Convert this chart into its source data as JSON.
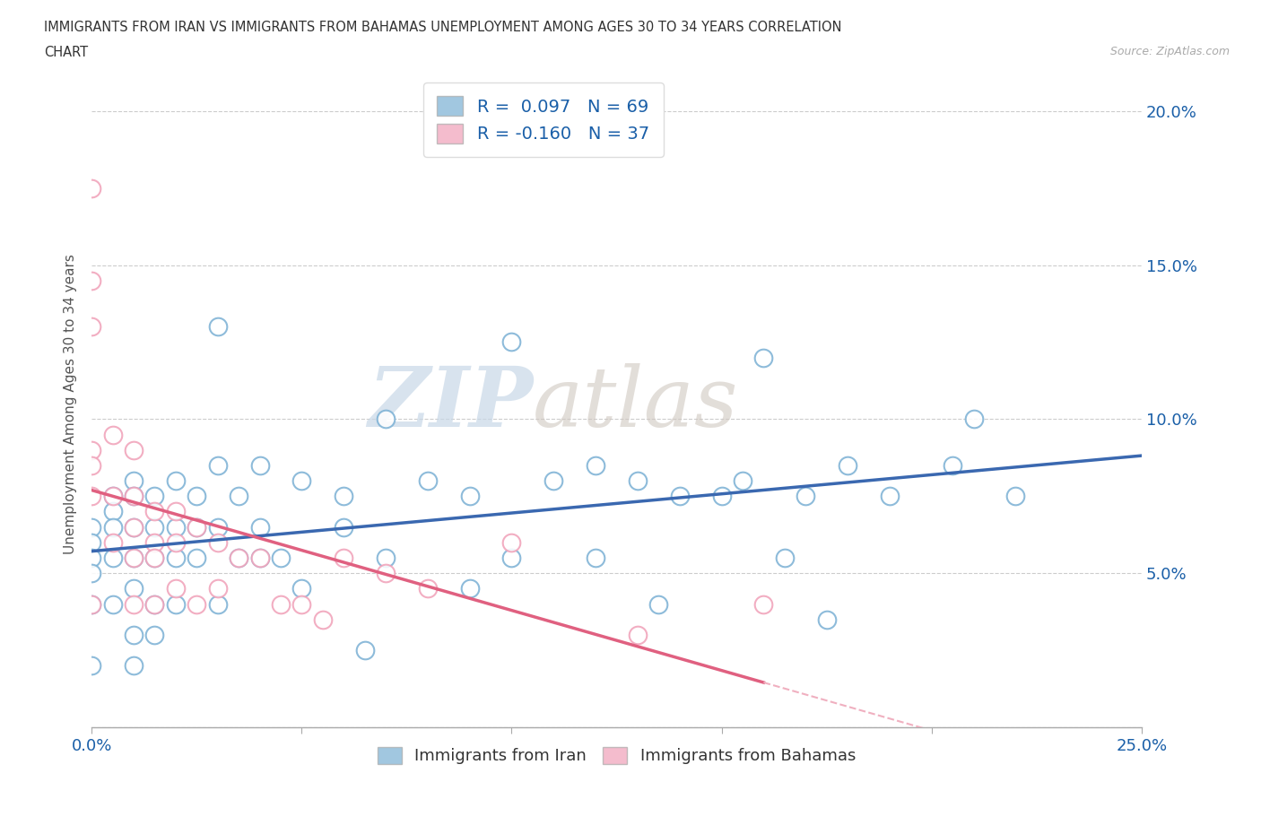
{
  "title_line1": "IMMIGRANTS FROM IRAN VS IMMIGRANTS FROM BAHAMAS UNEMPLOYMENT AMONG AGES 30 TO 34 YEARS CORRELATION",
  "title_line2": "CHART",
  "source_text": "Source: ZipAtlas.com",
  "ylabel": "Unemployment Among Ages 30 to 34 years",
  "xlim": [
    0.0,
    0.25
  ],
  "ylim": [
    0.0,
    0.21
  ],
  "xticks": [
    0.0,
    0.05,
    0.1,
    0.15,
    0.2,
    0.25
  ],
  "xticklabels": [
    "0.0%",
    "",
    "",
    "",
    "",
    "25.0%"
  ],
  "yticks": [
    0.0,
    0.05,
    0.1,
    0.15,
    0.2
  ],
  "yticklabels": [
    "",
    "5.0%",
    "10.0%",
    "15.0%",
    "20.0%"
  ],
  "iran_color_fill": "#ffffff",
  "iran_color_edge": "#7ab0d4",
  "bahamas_color_fill": "#ffffff",
  "bahamas_color_edge": "#f0a0b8",
  "iran_R": 0.097,
  "iran_N": 69,
  "bahamas_R": -0.16,
  "bahamas_N": 37,
  "grid_color": "#cccccc",
  "background_color": "#ffffff",
  "iran_scatter_x": [
    0.0,
    0.0,
    0.0,
    0.0,
    0.0,
    0.0,
    0.005,
    0.005,
    0.005,
    0.005,
    0.005,
    0.01,
    0.01,
    0.01,
    0.01,
    0.01,
    0.01,
    0.01,
    0.015,
    0.015,
    0.015,
    0.015,
    0.015,
    0.02,
    0.02,
    0.02,
    0.02,
    0.025,
    0.025,
    0.025,
    0.03,
    0.03,
    0.03,
    0.03,
    0.035,
    0.035,
    0.04,
    0.04,
    0.04,
    0.045,
    0.05,
    0.05,
    0.06,
    0.06,
    0.065,
    0.07,
    0.07,
    0.08,
    0.09,
    0.09,
    0.1,
    0.1,
    0.11,
    0.12,
    0.12,
    0.13,
    0.135,
    0.14,
    0.15,
    0.155,
    0.16,
    0.165,
    0.17,
    0.175,
    0.18,
    0.19,
    0.205,
    0.21,
    0.22
  ],
  "iran_scatter_y": [
    0.065,
    0.06,
    0.055,
    0.05,
    0.04,
    0.02,
    0.075,
    0.07,
    0.065,
    0.055,
    0.04,
    0.08,
    0.075,
    0.065,
    0.055,
    0.045,
    0.03,
    0.02,
    0.075,
    0.065,
    0.055,
    0.04,
    0.03,
    0.08,
    0.065,
    0.055,
    0.04,
    0.075,
    0.065,
    0.055,
    0.13,
    0.085,
    0.065,
    0.04,
    0.075,
    0.055,
    0.085,
    0.065,
    0.055,
    0.055,
    0.08,
    0.045,
    0.075,
    0.065,
    0.025,
    0.1,
    0.055,
    0.08,
    0.075,
    0.045,
    0.125,
    0.055,
    0.08,
    0.085,
    0.055,
    0.08,
    0.04,
    0.075,
    0.075,
    0.08,
    0.12,
    0.055,
    0.075,
    0.035,
    0.085,
    0.075,
    0.085,
    0.1,
    0.075
  ],
  "bahamas_scatter_x": [
    0.0,
    0.0,
    0.0,
    0.0,
    0.0,
    0.0,
    0.0,
    0.005,
    0.005,
    0.005,
    0.01,
    0.01,
    0.01,
    0.01,
    0.01,
    0.015,
    0.015,
    0.015,
    0.015,
    0.02,
    0.02,
    0.02,
    0.025,
    0.025,
    0.03,
    0.03,
    0.035,
    0.04,
    0.045,
    0.05,
    0.055,
    0.06,
    0.07,
    0.08,
    0.1,
    0.13,
    0.16
  ],
  "bahamas_scatter_y": [
    0.175,
    0.145,
    0.13,
    0.09,
    0.085,
    0.075,
    0.04,
    0.095,
    0.075,
    0.06,
    0.09,
    0.075,
    0.065,
    0.055,
    0.04,
    0.07,
    0.06,
    0.055,
    0.04,
    0.07,
    0.06,
    0.045,
    0.065,
    0.04,
    0.06,
    0.045,
    0.055,
    0.055,
    0.04,
    0.04,
    0.035,
    0.055,
    0.05,
    0.045,
    0.06,
    0.03,
    0.04
  ],
  "watermark_text1": "ZIP",
  "watermark_text2": "atlas",
  "iran_line_color": "#3a68b0",
  "bahamas_line_color": "#e06080",
  "bahamas_dash_color": "#f0b0c0",
  "legend_text_color": "#1a5fa8"
}
